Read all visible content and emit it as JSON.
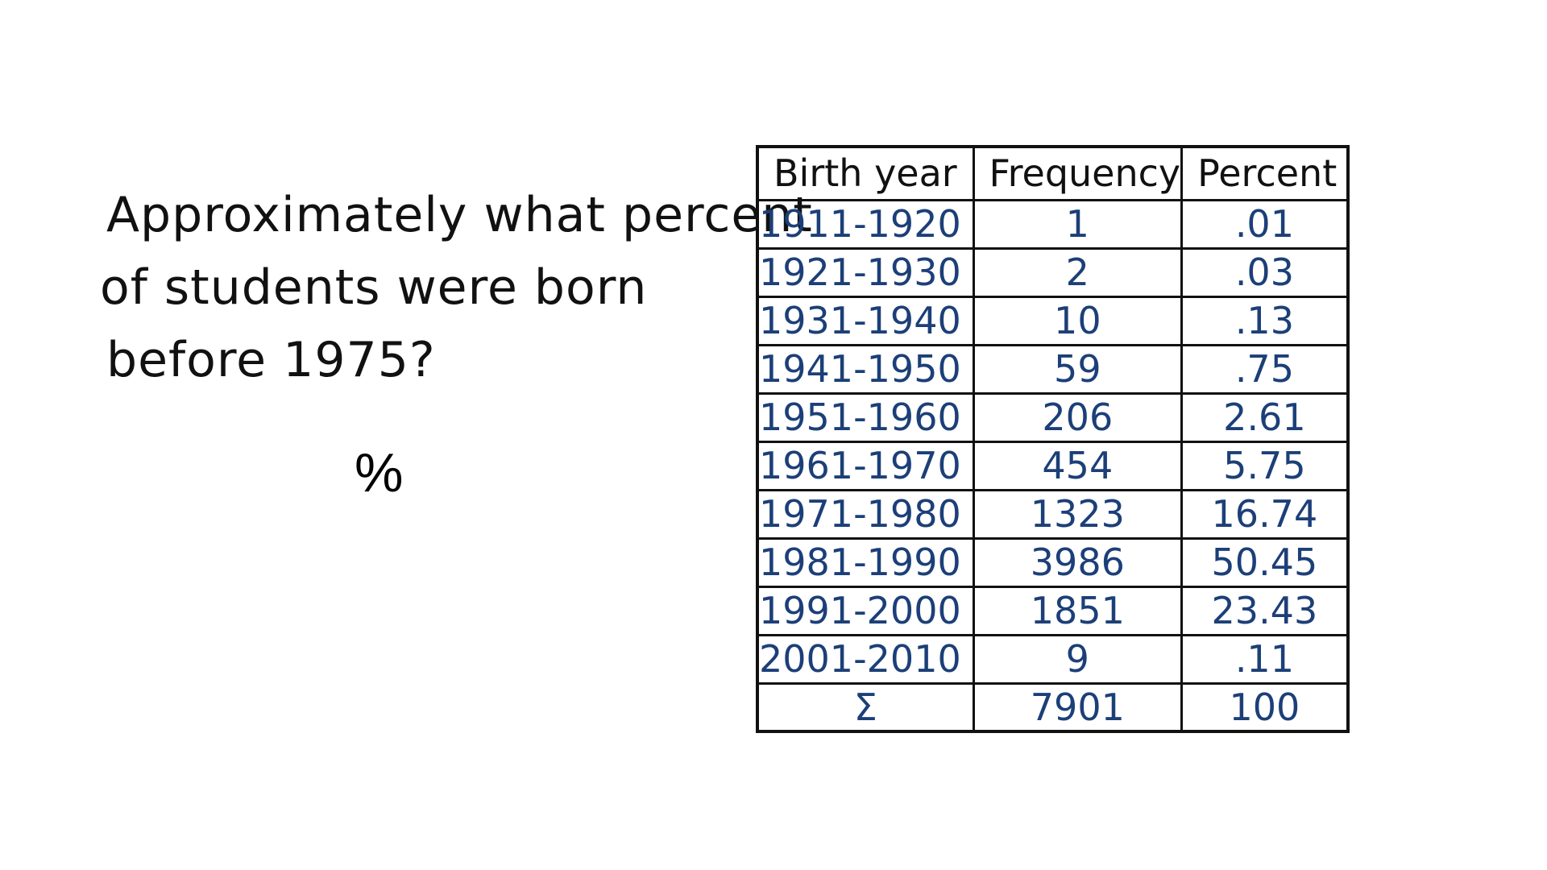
{
  "question": {
    "lines": [
      "Approximately what percent",
      "of students were born",
      "before 1975?"
    ],
    "answer_suffix": "%"
  },
  "table": {
    "headers": [
      "Birth year",
      "Frequency",
      "Percent"
    ],
    "rows": [
      [
        "1911-1920",
        "1",
        ".01"
      ],
      [
        "1921-1930",
        "2",
        ".03"
      ],
      [
        "1931-1940",
        "10",
        ".13"
      ],
      [
        "1941-1950",
        "59",
        ".75"
      ],
      [
        "1951-1960",
        "206",
        "2.61"
      ],
      [
        "1961-1970",
        "454",
        "5.75"
      ],
      [
        "1971-1980",
        "1323",
        "16.74"
      ],
      [
        "1981-1990",
        "3986",
        "50.45"
      ],
      [
        "1991-2000",
        "1851",
        "23.43"
      ],
      [
        "2001-2010",
        "9",
        ".11"
      ]
    ],
    "total": [
      "Σ",
      "7901",
      "100"
    ]
  },
  "colors": {
    "ink": "#111111",
    "handwriting_blue": "#1c3f78",
    "background": "#ffffff"
  }
}
